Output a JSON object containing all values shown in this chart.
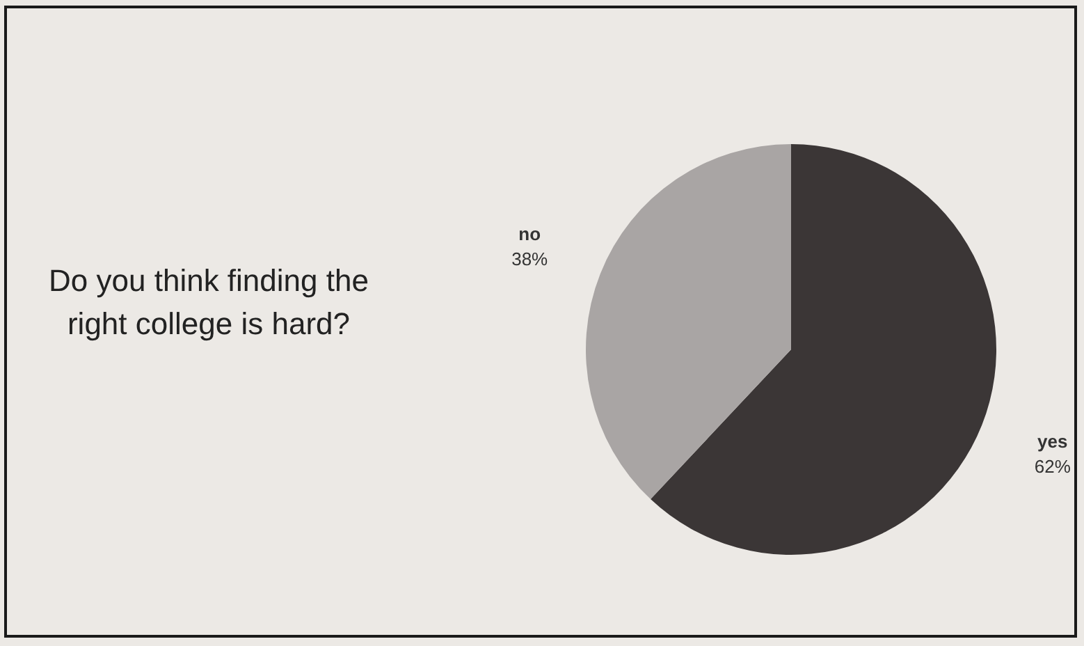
{
  "chart_data": {
    "type": "pie",
    "title": "Do you think finding the right college is hard?",
    "categories": [
      "yes",
      "no"
    ],
    "values": [
      62,
      38
    ],
    "value_labels": [
      "62%",
      "38%"
    ],
    "colors": [
      "#3b3636",
      "#a9a5a4"
    ],
    "legend": false
  }
}
